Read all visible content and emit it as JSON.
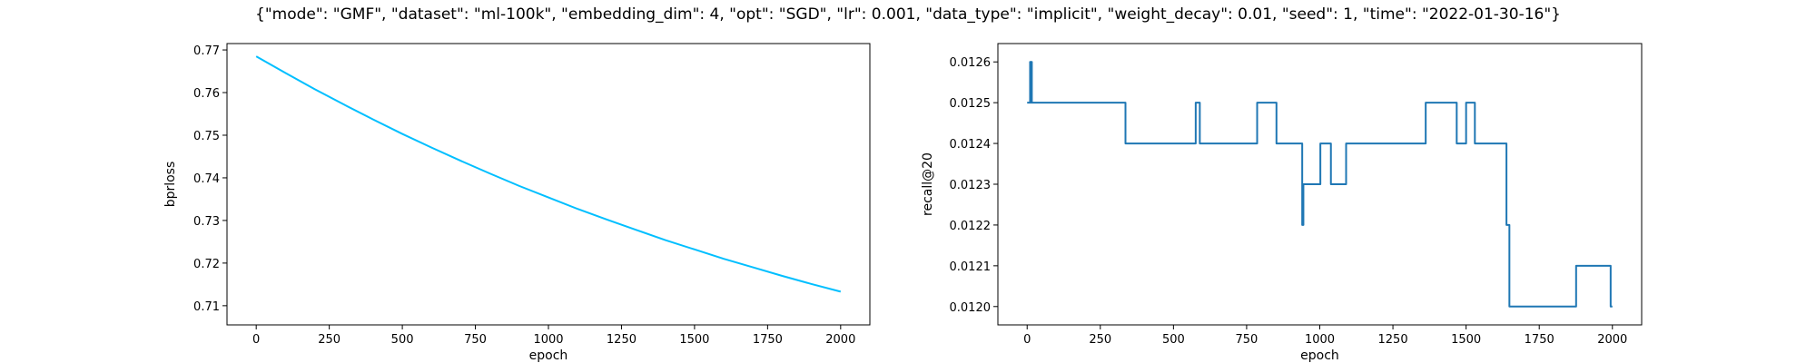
{
  "figure": {
    "title": "{\"mode\": \"GMF\", \"dataset\": \"ml-100k\", \"embedding_dim\": 4, \"opt\": \"SGD\", \"lr\": 0.001, \"data_type\": \"implicit\", \"weight_decay\": 0.01, \"seed\": 1, \"time\": \"2022-01-30-16\"}"
  },
  "chart_data": [
    {
      "type": "line",
      "xlabel": "epoch",
      "ylabel": "bprloss",
      "xlim": [
        -100,
        2100
      ],
      "ylim": [
        0.7055,
        0.7715
      ],
      "xticks": [
        0,
        250,
        500,
        750,
        1000,
        1250,
        1500,
        1750,
        2000
      ],
      "yticks": [
        0.71,
        0.72,
        0.73,
        0.74,
        0.75,
        0.76,
        0.77
      ],
      "ytick_labels": [
        "0.71",
        "0.72",
        "0.73",
        "0.74",
        "0.75",
        "0.76",
        "0.77"
      ],
      "grid": false,
      "color": "#00bfff",
      "series": [
        {
          "x": [
            0,
            100,
            200,
            300,
            400,
            500,
            600,
            700,
            800,
            900,
            1000,
            1100,
            1200,
            1300,
            1400,
            1500,
            1600,
            1700,
            1800,
            1900,
            2000
          ],
          "values": [
            0.7685,
            0.7646,
            0.7608,
            0.7572,
            0.7537,
            0.7503,
            0.7471,
            0.744,
            0.741,
            0.7381,
            0.7354,
            0.7327,
            0.7302,
            0.7278,
            0.7254,
            0.7232,
            0.721,
            0.719,
            0.717,
            0.7151,
            0.7133
          ]
        }
      ]
    },
    {
      "type": "line",
      "xlabel": "epoch",
      "ylabel": "recall@20",
      "xlim": [
        -100,
        2100
      ],
      "ylim": [
        0.011955,
        0.012645
      ],
      "xticks": [
        0,
        250,
        500,
        750,
        1000,
        1250,
        1500,
        1750,
        2000
      ],
      "yticks": [
        0.012,
        0.0121,
        0.0122,
        0.0123,
        0.0124,
        0.0125,
        0.0126
      ],
      "ytick_labels": [
        "0.0120",
        "0.0121",
        "0.0122",
        "0.0123",
        "0.0124",
        "0.0125",
        "0.0126"
      ],
      "grid": false,
      "color": "#1f77b4",
      "series": [
        {
          "x": [
            0,
            10,
            10,
            12,
            12,
            14,
            14,
            16,
            16,
            336,
            336,
            576,
            576,
            590,
            590,
            786,
            786,
            852,
            852,
            940,
            940,
            944,
            944,
            946,
            946,
            1002,
            1002,
            1038,
            1038,
            1090,
            1090,
            1362,
            1362,
            1468,
            1468,
            1500,
            1500,
            1530,
            1530,
            1638,
            1638,
            1644,
            1644,
            1648,
            1648,
            1876,
            1876,
            1994,
            1994,
            2000
          ],
          "values": [
            0.0125,
            0.0125,
            0.0126,
            0.0126,
            0.0125,
            0.0125,
            0.0126,
            0.0126,
            0.0125,
            0.0125,
            0.0124,
            0.0124,
            0.0125,
            0.0125,
            0.0124,
            0.0124,
            0.0125,
            0.0125,
            0.0124,
            0.0124,
            0.0122,
            0.0122,
            0.0123,
            0.0123,
            0.0123,
            0.0123,
            0.0124,
            0.0124,
            0.0123,
            0.0123,
            0.0124,
            0.0124,
            0.0125,
            0.0125,
            0.0124,
            0.0124,
            0.0125,
            0.0125,
            0.0124,
            0.0124,
            0.0122,
            0.0122,
            0.0122,
            0.0122,
            0.012,
            0.012,
            0.0121,
            0.0121,
            0.012,
            0.012
          ]
        }
      ]
    }
  ]
}
